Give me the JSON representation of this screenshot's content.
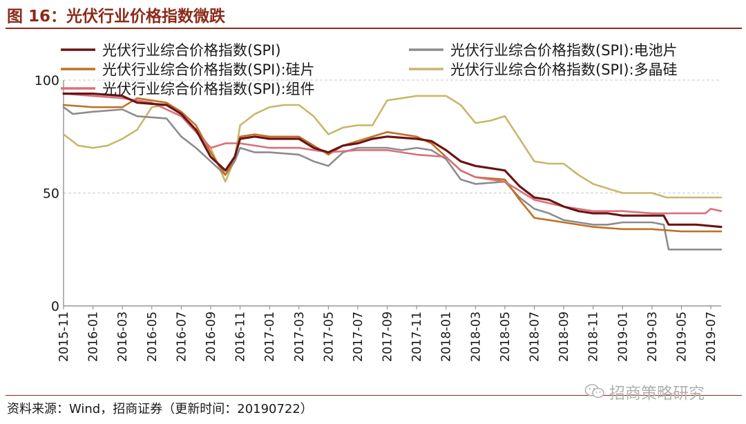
{
  "figure": {
    "title": "图 16：光伏行业价格指数微跌",
    "source": "资料来源：Wind，招商证券（更新时间：20190722）",
    "watermark": "招商策略研究",
    "watermark_icon": "wechat-icon"
  },
  "chart_data": {
    "type": "line",
    "xlabel": "",
    "ylabel": "",
    "ylim": [
      0,
      100
    ],
    "yticks": [
      0,
      50,
      100
    ],
    "grid": "dashed horizontal at 50 and 100",
    "legend_position": "top",
    "xticks": [
      "2015-11",
      "2016-01",
      "2016-03",
      "2016-05",
      "2016-07",
      "2016-09",
      "2016-11",
      "2017-01",
      "2017-03",
      "2017-05",
      "2017-07",
      "2017-09",
      "2017-11",
      "2018-01",
      "2018-03",
      "2018-05",
      "2018-07",
      "2018-09",
      "2018-11",
      "2019-01",
      "2019-03",
      "2019-05",
      "2019-07"
    ],
    "x_range": [
      "2015-11",
      "2019-07-22"
    ],
    "series": [
      {
        "name": "光伏行业综合价格指数(SPI)",
        "color": "#6b1414",
        "points": [
          [
            "2015-11",
            94
          ],
          [
            "2016-01",
            94
          ],
          [
            "2016-03",
            93
          ],
          [
            "2016-04",
            90
          ],
          [
            "2016-06",
            89
          ],
          [
            "2016-07",
            85
          ],
          [
            "2016-08",
            78
          ],
          [
            "2016-09",
            66
          ],
          [
            "2016-10-01",
            60
          ],
          [
            "2016-10-20",
            66
          ],
          [
            "2016-11",
            74
          ],
          [
            "2016-12",
            75
          ],
          [
            "2017-01",
            74
          ],
          [
            "2017-03",
            74
          ],
          [
            "2017-04",
            70
          ],
          [
            "2017-05",
            68
          ],
          [
            "2017-06",
            71
          ],
          [
            "2017-07",
            72
          ],
          [
            "2017-08",
            74
          ],
          [
            "2017-09",
            75
          ],
          [
            "2017-11",
            74
          ],
          [
            "2017-12",
            73
          ],
          [
            "2018-01",
            69
          ],
          [
            "2018-02",
            64
          ],
          [
            "2018-03",
            62
          ],
          [
            "2018-04",
            61
          ],
          [
            "2018-05",
            60
          ],
          [
            "2018-06",
            53
          ],
          [
            "2018-07",
            48
          ],
          [
            "2018-08",
            47
          ],
          [
            "2018-09",
            44
          ],
          [
            "2018-10",
            42
          ],
          [
            "2018-11",
            41
          ],
          [
            "2018-12",
            41
          ],
          [
            "2019-01",
            40
          ],
          [
            "2019-03",
            40
          ],
          [
            "2019-03-25",
            40
          ],
          [
            "2019-04-05",
            36
          ],
          [
            "2019-06",
            36
          ],
          [
            "2019-07-22",
            35
          ]
        ]
      },
      {
        "name": "光伏行业综合价格指数(SPI):电池片",
        "color": "#8c8c8c",
        "points": [
          [
            "2015-11",
            88
          ],
          [
            "2015-11-20",
            85
          ],
          [
            "2016-01",
            86
          ],
          [
            "2016-03",
            87
          ],
          [
            "2016-04",
            84
          ],
          [
            "2016-06",
            83
          ],
          [
            "2016-07",
            75
          ],
          [
            "2016-08",
            70
          ],
          [
            "2016-09",
            64
          ],
          [
            "2016-10-01",
            58
          ],
          [
            "2016-10-20",
            64
          ],
          [
            "2016-11",
            70
          ],
          [
            "2016-12",
            68
          ],
          [
            "2017-01",
            68
          ],
          [
            "2017-03",
            67
          ],
          [
            "2017-04",
            64
          ],
          [
            "2017-05",
            62
          ],
          [
            "2017-06",
            68
          ],
          [
            "2017-07",
            70
          ],
          [
            "2017-09",
            70
          ],
          [
            "2017-10",
            69
          ],
          [
            "2017-11",
            70
          ],
          [
            "2017-12",
            69
          ],
          [
            "2018-01",
            65
          ],
          [
            "2018-02",
            56
          ],
          [
            "2018-03",
            54
          ],
          [
            "2018-05",
            55
          ],
          [
            "2018-06",
            48
          ],
          [
            "2018-07",
            43
          ],
          [
            "2018-08",
            41
          ],
          [
            "2018-09",
            38
          ],
          [
            "2018-10",
            37
          ],
          [
            "2018-11",
            36
          ],
          [
            "2018-12",
            36
          ],
          [
            "2019-01",
            37
          ],
          [
            "2019-03",
            37
          ],
          [
            "2019-03-25",
            36
          ],
          [
            "2019-04-05",
            25
          ],
          [
            "2019-06",
            25
          ],
          [
            "2019-07-22",
            25
          ]
        ]
      },
      {
        "name": "光伏行业综合价格指数(SPI):硅片",
        "color": "#c07024",
        "points": [
          [
            "2015-11",
            89
          ],
          [
            "2016-01",
            88
          ],
          [
            "2016-03",
            88
          ],
          [
            "2016-04",
            92
          ],
          [
            "2016-06",
            90
          ],
          [
            "2016-07",
            86
          ],
          [
            "2016-08",
            80
          ],
          [
            "2016-09",
            68
          ],
          [
            "2016-10-01",
            58
          ],
          [
            "2016-10-20",
            66
          ],
          [
            "2016-11",
            75
          ],
          [
            "2016-12",
            76
          ],
          [
            "2017-01",
            75
          ],
          [
            "2017-03",
            75
          ],
          [
            "2017-04",
            71
          ],
          [
            "2017-05",
            67
          ],
          [
            "2017-06",
            71
          ],
          [
            "2017-07",
            73
          ],
          [
            "2017-08",
            75
          ],
          [
            "2017-09",
            77
          ],
          [
            "2017-11",
            75
          ],
          [
            "2017-12",
            72
          ],
          [
            "2018-01",
            66
          ],
          [
            "2018-02",
            60
          ],
          [
            "2018-03",
            57
          ],
          [
            "2018-05",
            56
          ],
          [
            "2018-06",
            47
          ],
          [
            "2018-07",
            39
          ],
          [
            "2018-08",
            38
          ],
          [
            "2018-09",
            37
          ],
          [
            "2018-11",
            35
          ],
          [
            "2019-01",
            34
          ],
          [
            "2019-03",
            34
          ],
          [
            "2019-05",
            33
          ],
          [
            "2019-07-22",
            33
          ]
        ]
      },
      {
        "name": "光伏行业综合价格指数(SPI):多晶硅",
        "color": "#c9b66a",
        "points": [
          [
            "2015-11",
            76
          ],
          [
            "2015-12",
            71
          ],
          [
            "2016-01",
            70
          ],
          [
            "2016-02",
            71
          ],
          [
            "2016-03",
            74
          ],
          [
            "2016-04",
            78
          ],
          [
            "2016-05",
            88
          ],
          [
            "2016-06",
            89
          ],
          [
            "2016-07",
            85
          ],
          [
            "2016-08",
            78
          ],
          [
            "2016-09",
            70
          ],
          [
            "2016-10-01",
            55
          ],
          [
            "2016-10-20",
            65
          ],
          [
            "2016-11",
            80
          ],
          [
            "2016-12",
            85
          ],
          [
            "2017-01",
            88
          ],
          [
            "2017-02",
            89
          ],
          [
            "2017-03",
            89
          ],
          [
            "2017-04",
            84
          ],
          [
            "2017-05",
            76
          ],
          [
            "2017-06",
            79
          ],
          [
            "2017-07",
            80
          ],
          [
            "2017-08",
            80
          ],
          [
            "2017-09",
            91
          ],
          [
            "2017-10",
            92
          ],
          [
            "2017-11",
            93
          ],
          [
            "2018-01",
            93
          ],
          [
            "2018-02",
            89
          ],
          [
            "2018-03",
            81
          ],
          [
            "2018-04",
            82
          ],
          [
            "2018-05",
            84
          ],
          [
            "2018-06",
            74
          ],
          [
            "2018-07",
            64
          ],
          [
            "2018-08",
            63
          ],
          [
            "2018-09",
            63
          ],
          [
            "2018-10",
            58
          ],
          [
            "2018-11",
            54
          ],
          [
            "2018-12",
            52
          ],
          [
            "2019-01",
            50
          ],
          [
            "2019-03",
            50
          ],
          [
            "2019-04",
            48
          ],
          [
            "2019-06",
            48
          ],
          [
            "2019-07-22",
            48
          ]
        ]
      },
      {
        "name": "光伏行业综合价格指数(SPI):组件",
        "color": "#d9707a",
        "points": [
          [
            "2015-11",
            94
          ],
          [
            "2016-01",
            93
          ],
          [
            "2016-03",
            92
          ],
          [
            "2016-05",
            90
          ],
          [
            "2016-07",
            84
          ],
          [
            "2016-08",
            77
          ],
          [
            "2016-09",
            70
          ],
          [
            "2016-10",
            72
          ],
          [
            "2016-11",
            72
          ],
          [
            "2017-01",
            70
          ],
          [
            "2017-03",
            70
          ],
          [
            "2017-05",
            68
          ],
          [
            "2017-07",
            69
          ],
          [
            "2017-09",
            69
          ],
          [
            "2017-11",
            67
          ],
          [
            "2018-01",
            66
          ],
          [
            "2018-02",
            60
          ],
          [
            "2018-03",
            57
          ],
          [
            "2018-05",
            55
          ],
          [
            "2018-07",
            47
          ],
          [
            "2018-09",
            44
          ],
          [
            "2018-11",
            42
          ],
          [
            "2019-01",
            42
          ],
          [
            "2019-03",
            41
          ],
          [
            "2019-05",
            41
          ],
          [
            "2019-06-20",
            41
          ],
          [
            "2019-07-01",
            43
          ],
          [
            "2019-07-22",
            42
          ]
        ]
      }
    ]
  }
}
